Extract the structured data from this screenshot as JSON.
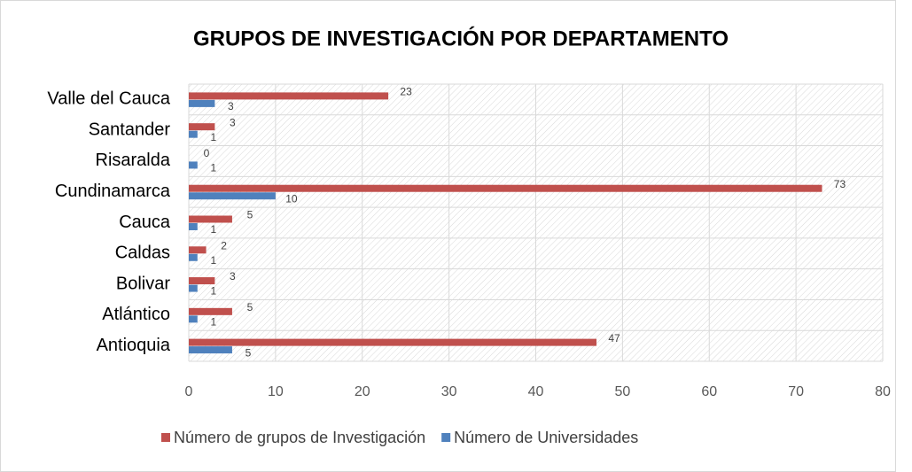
{
  "chart_data": {
    "type": "bar",
    "orientation": "horizontal",
    "title": "GRUPOS DE INVESTIGACIÓN POR DEPARTAMENTO",
    "categories": [
      "Antioquia",
      "Atlántico",
      "Bolivar",
      "Caldas",
      "Cauca",
      "Cundinamarca",
      "Risaralda",
      "Santander",
      "Valle del Cauca"
    ],
    "series": [
      {
        "name": "Número de grupos de Investigación",
        "color": "#c0504d",
        "values": [
          47,
          5,
          3,
          2,
          5,
          73,
          0,
          3,
          23
        ]
      },
      {
        "name": "Número de Universidades",
        "color": "#4f81bd",
        "values": [
          5,
          1,
          1,
          1,
          1,
          10,
          1,
          1,
          3
        ]
      }
    ],
    "xlim": [
      0,
      80
    ],
    "xticks": [
      0,
      10,
      20,
      30,
      40,
      50,
      60,
      70,
      80
    ],
    "grid": true,
    "legend": "bottom"
  }
}
